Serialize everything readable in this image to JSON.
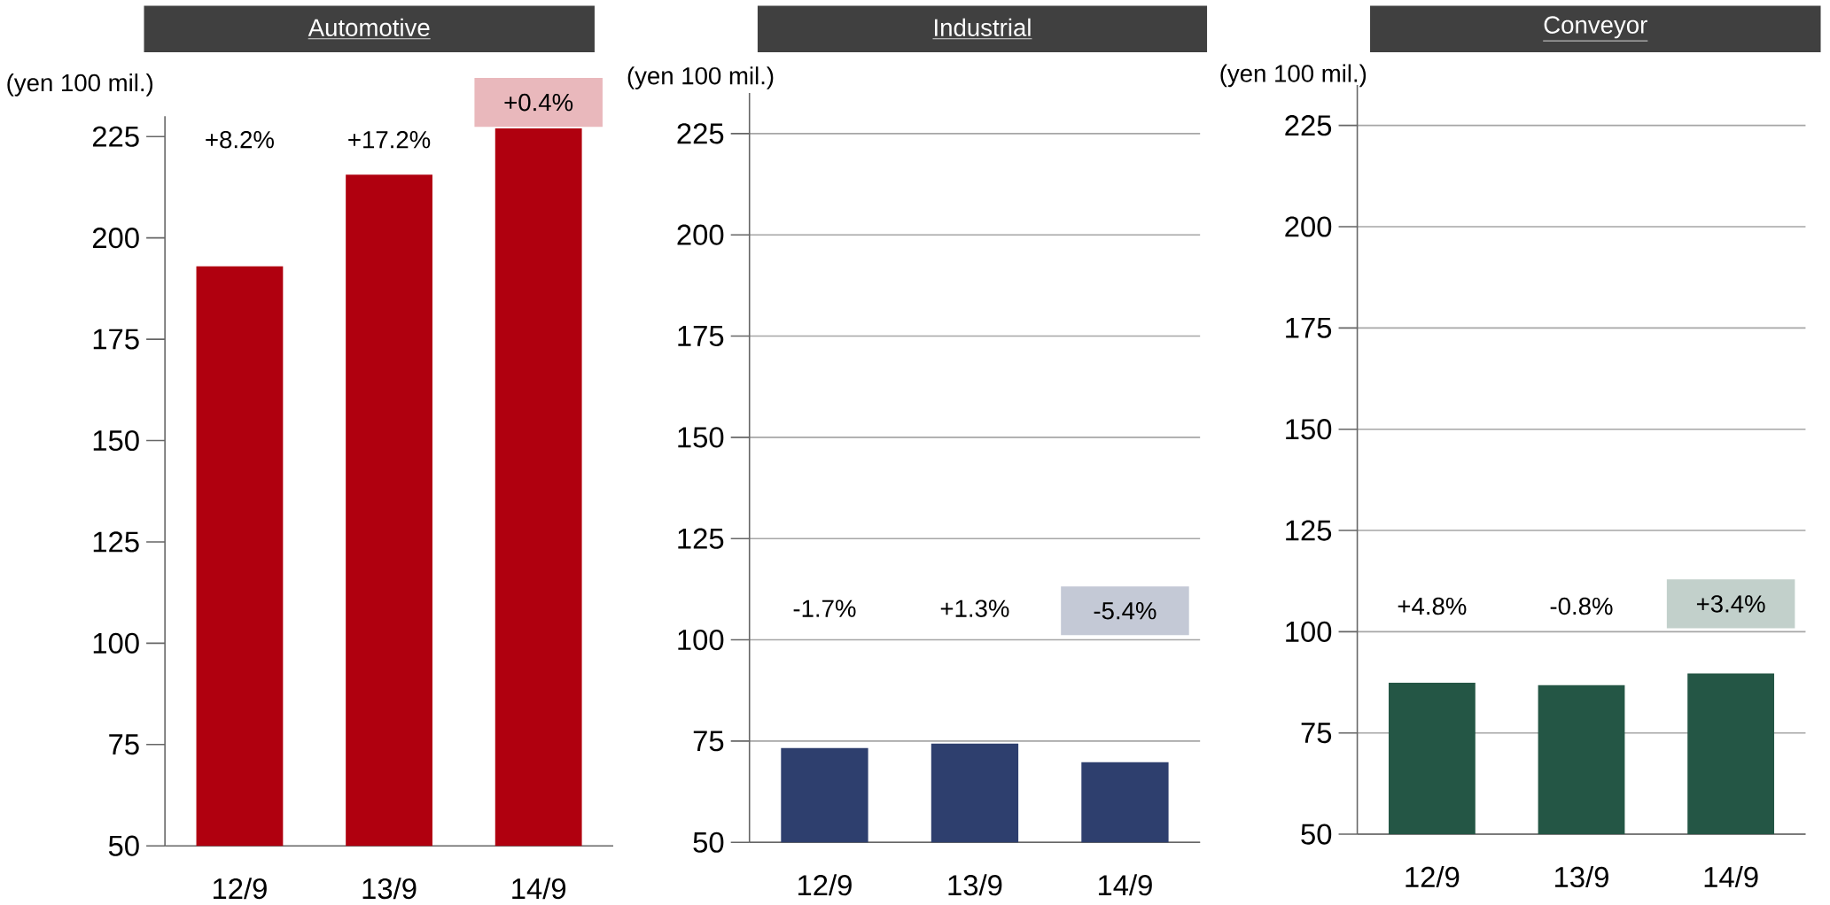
{
  "chart_data": [
    {
      "type": "bar",
      "title": "Automotive",
      "ylabel": "(yen 100 mil.)",
      "categories": [
        "12/9",
        "13/9",
        "14/9"
      ],
      "values": [
        193,
        215.6,
        227
      ],
      "color": "#b0000f",
      "ylim": [
        50,
        230
      ],
      "yticks": [
        50,
        75,
        100,
        125,
        150,
        175,
        200,
        225
      ],
      "grid": false,
      "annotations": [
        "+8.2%",
        "+17.2%",
        "+0.4%"
      ]
    },
    {
      "type": "bar",
      "title": "Industrial",
      "ylabel": "(yen 100 mil.)",
      "categories": [
        "12/9",
        "13/9",
        "14/9"
      ],
      "values": [
        73.3,
        74.4,
        69.8
      ],
      "color": "#2e3f6e",
      "ylim": [
        50,
        235
      ],
      "yticks": [
        50,
        75,
        100,
        125,
        150,
        175,
        200,
        225
      ],
      "grid": "y",
      "annotations": [
        "-1.7%",
        "+1.3%",
        "-5.4%"
      ]
    },
    {
      "type": "bar",
      "title": "Conveyor",
      "ylabel": "(yen 100 mil.)",
      "categories": [
        "12/9",
        "13/9",
        "14/9"
      ],
      "values": [
        87.4,
        86.8,
        89.7
      ],
      "color": "#245645",
      "ylim": [
        50,
        235
      ],
      "yticks": [
        50,
        75,
        100,
        125,
        150,
        175,
        200,
        225
      ],
      "grid": "y",
      "annotations": [
        "+4.8%",
        "-0.8%",
        "+3.4%"
      ]
    }
  ]
}
